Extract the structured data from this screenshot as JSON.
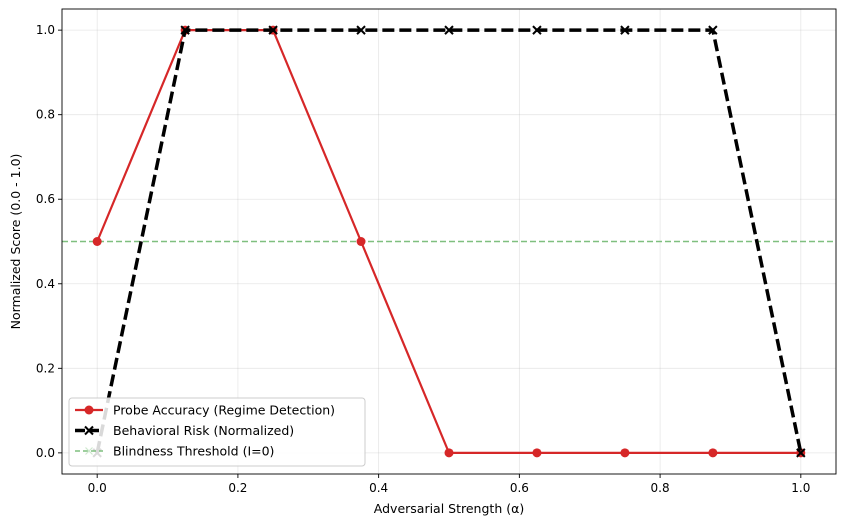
{
  "chart_data": {
    "type": "line",
    "title": "",
    "xlabel": "Adversarial Strength (α)",
    "ylabel": "Normalized Score (0.0 - 1.0)",
    "xlim": [
      -0.05,
      1.05
    ],
    "ylim": [
      -0.05,
      1.05
    ],
    "xticks": [
      0.0,
      0.2,
      0.4,
      0.6,
      0.8,
      1.0
    ],
    "xtick_labels": [
      "0.0",
      "0.2",
      "0.4",
      "0.6",
      "0.8",
      "1.0"
    ],
    "yticks": [
      0.0,
      0.2,
      0.4,
      0.6,
      0.8,
      1.0
    ],
    "ytick_labels": [
      "0.0",
      "0.2",
      "0.4",
      "0.6",
      "0.8",
      "1.0"
    ],
    "grid": true,
    "legend_position": "lower-left",
    "series": [
      {
        "name": "Probe Accuracy (Regime Detection)",
        "color": "#d62728",
        "style": "solid",
        "marker": "circle",
        "x": [
          0.0,
          0.125,
          0.25,
          0.375,
          0.5,
          0.625,
          0.75,
          0.875,
          1.0
        ],
        "y": [
          0.5,
          1.0,
          1.0,
          0.5,
          0.0,
          0.0,
          0.0,
          0.0,
          0.0
        ]
      },
      {
        "name": "Behavioral Risk (Normalized)",
        "color": "#000000",
        "style": "dashed",
        "marker": "x",
        "x": [
          0.0,
          0.125,
          0.25,
          0.375,
          0.5,
          0.625,
          0.75,
          0.875,
          1.0
        ],
        "y": [
          0.0,
          1.0,
          1.0,
          1.0,
          1.0,
          1.0,
          1.0,
          1.0,
          0.0
        ]
      }
    ],
    "reference_lines": [
      {
        "name": "Blindness Threshold (I=0)",
        "orientation": "horizontal",
        "y": 0.5,
        "color": "#7fbf7f",
        "style": "dashed"
      }
    ]
  }
}
